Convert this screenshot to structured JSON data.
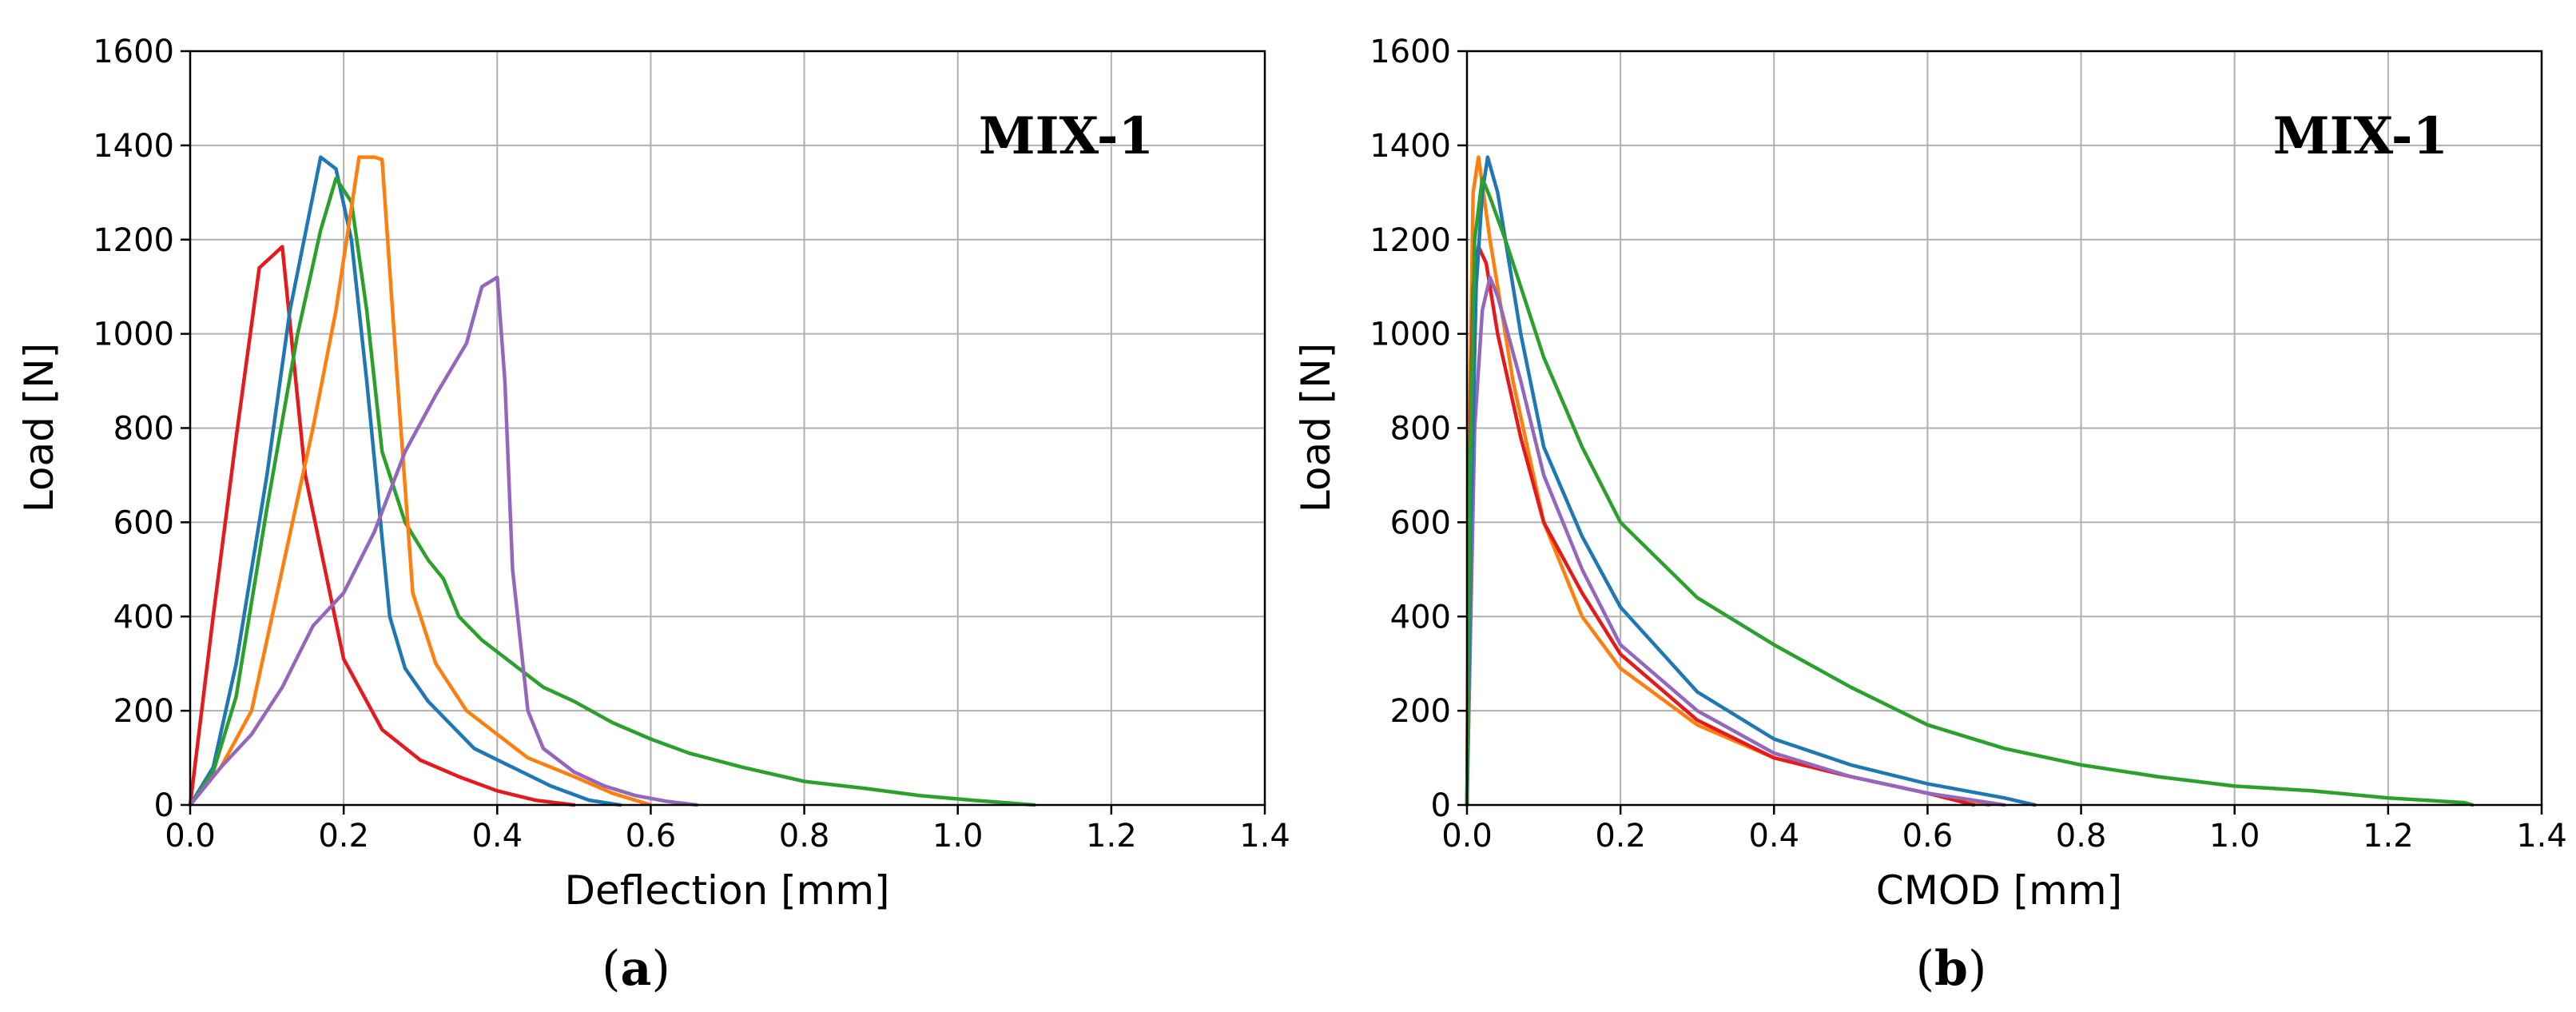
{
  "chart_data": [
    {
      "id": "a",
      "type": "line",
      "title": "",
      "annotation": "MIX-1",
      "xlabel": "Deflection [mm]",
      "ylabel": "Load [N]",
      "xlim": [
        0.0,
        1.4
      ],
      "ylim": [
        0,
        1600
      ],
      "xticks": [
        "0.0",
        "0.2",
        "0.4",
        "0.6",
        "0.8",
        "1.0",
        "1.2",
        "1.4"
      ],
      "yticks": [
        "0",
        "200",
        "400",
        "600",
        "800",
        "1000",
        "1200",
        "1400",
        "1600"
      ],
      "grid": true,
      "caption_letter": "a",
      "series": [
        {
          "name": "red",
          "color": "#e41a1c",
          "x": [
            0,
            0.03,
            0.06,
            0.09,
            0.12,
            0.15,
            0.2,
            0.25,
            0.3,
            0.35,
            0.4,
            0.45,
            0.5
          ],
          "y": [
            0,
            400,
            780,
            1140,
            1185,
            700,
            310,
            160,
            95,
            60,
            30,
            10,
            0
          ]
        },
        {
          "name": "blue",
          "color": "#1f77b4",
          "x": [
            0,
            0.03,
            0.06,
            0.1,
            0.13,
            0.17,
            0.19,
            0.21,
            0.23,
            0.26,
            0.28,
            0.31,
            0.34,
            0.37,
            0.42,
            0.47,
            0.52,
            0.56
          ],
          "y": [
            0,
            80,
            300,
            700,
            1050,
            1375,
            1350,
            1200,
            900,
            400,
            290,
            220,
            170,
            120,
            80,
            40,
            10,
            0
          ]
        },
        {
          "name": "green",
          "color": "#2ca02c",
          "x": [
            0,
            0.03,
            0.06,
            0.1,
            0.14,
            0.17,
            0.19,
            0.21,
            0.23,
            0.25,
            0.28,
            0.31,
            0.33,
            0.35,
            0.38,
            0.42,
            0.46,
            0.5,
            0.55,
            0.6,
            0.65,
            0.72,
            0.8,
            0.88,
            0.95,
            1.02,
            1.1
          ],
          "y": [
            0,
            70,
            230,
            630,
            1000,
            1220,
            1330,
            1280,
            1050,
            750,
            600,
            520,
            480,
            400,
            350,
            300,
            250,
            220,
            175,
            140,
            110,
            80,
            50,
            35,
            20,
            10,
            0
          ]
        },
        {
          "name": "orange",
          "color": "#ff7f0e",
          "x": [
            0,
            0.04,
            0.08,
            0.12,
            0.16,
            0.19,
            0.22,
            0.24,
            0.25,
            0.27,
            0.29,
            0.32,
            0.36,
            0.4,
            0.44,
            0.5,
            0.55,
            0.6
          ],
          "y": [
            0,
            80,
            200,
            500,
            800,
            1050,
            1375,
            1375,
            1370,
            900,
            450,
            300,
            200,
            150,
            100,
            60,
            25,
            0
          ]
        },
        {
          "name": "purple",
          "color": "#9467bd",
          "x": [
            0,
            0.04,
            0.08,
            0.12,
            0.16,
            0.2,
            0.24,
            0.28,
            0.32,
            0.36,
            0.38,
            0.39,
            0.4,
            0.41,
            0.42,
            0.44,
            0.46,
            0.5,
            0.54,
            0.58,
            0.62,
            0.66
          ],
          "y": [
            0,
            80,
            150,
            250,
            380,
            450,
            580,
            750,
            870,
            980,
            1100,
            1110,
            1120,
            900,
            500,
            200,
            120,
            70,
            40,
            20,
            8,
            0
          ]
        }
      ]
    },
    {
      "id": "b",
      "type": "line",
      "title": "",
      "annotation": "MIX-1",
      "xlabel": "CMOD [mm]",
      "ylabel": "Load [N]",
      "xlim": [
        0.0,
        1.4
      ],
      "ylim": [
        0,
        1600
      ],
      "xticks": [
        "0.0",
        "0.2",
        "0.4",
        "0.6",
        "0.8",
        "1.0",
        "1.2",
        "1.4"
      ],
      "yticks": [
        "0",
        "200",
        "400",
        "600",
        "800",
        "1000",
        "1200",
        "1400",
        "1600"
      ],
      "grid": true,
      "caption_letter": "b",
      "series": [
        {
          "name": "orange",
          "color": "#ff7f0e",
          "x": [
            0,
            0.003,
            0.008,
            0.015,
            0.03,
            0.06,
            0.1,
            0.15,
            0.2,
            0.3,
            0.4,
            0.5,
            0.6,
            0.65,
            0.68
          ],
          "y": [
            0,
            800,
            1300,
            1375,
            1200,
            900,
            600,
            400,
            290,
            170,
            100,
            60,
            25,
            10,
            0
          ]
        },
        {
          "name": "red",
          "color": "#e41a1c",
          "x": [
            0,
            0.003,
            0.008,
            0.015,
            0.025,
            0.04,
            0.07,
            0.1,
            0.15,
            0.2,
            0.3,
            0.4,
            0.5,
            0.6,
            0.66
          ],
          "y": [
            0,
            700,
            1100,
            1185,
            1150,
            1000,
            780,
            600,
            450,
            320,
            180,
            100,
            60,
            25,
            0
          ]
        },
        {
          "name": "purple",
          "color": "#9467bd",
          "x": [
            0,
            0.005,
            0.01,
            0.02,
            0.03,
            0.04,
            0.07,
            0.1,
            0.15,
            0.2,
            0.3,
            0.4,
            0.5,
            0.6,
            0.7
          ],
          "y": [
            0,
            400,
            800,
            1050,
            1120,
            1080,
            900,
            700,
            500,
            340,
            200,
            110,
            60,
            25,
            0
          ]
        },
        {
          "name": "blue",
          "color": "#1f77b4",
          "x": [
            0,
            0.005,
            0.012,
            0.02,
            0.027,
            0.04,
            0.07,
            0.1,
            0.15,
            0.2,
            0.3,
            0.4,
            0.5,
            0.6,
            0.7,
            0.74
          ],
          "y": [
            0,
            600,
            1100,
            1300,
            1375,
            1300,
            1000,
            760,
            570,
            420,
            240,
            140,
            85,
            45,
            15,
            0
          ]
        },
        {
          "name": "green",
          "color": "#2ca02c",
          "x": [
            0,
            0.004,
            0.01,
            0.02,
            0.03,
            0.05,
            0.07,
            0.1,
            0.15,
            0.2,
            0.3,
            0.4,
            0.5,
            0.6,
            0.7,
            0.8,
            0.9,
            1.0,
            1.1,
            1.2,
            1.3,
            1.31
          ],
          "y": [
            0,
            700,
            1200,
            1330,
            1290,
            1200,
            1100,
            950,
            760,
            600,
            440,
            340,
            250,
            170,
            120,
            85,
            60,
            40,
            30,
            15,
            5,
            0
          ]
        }
      ]
    }
  ]
}
